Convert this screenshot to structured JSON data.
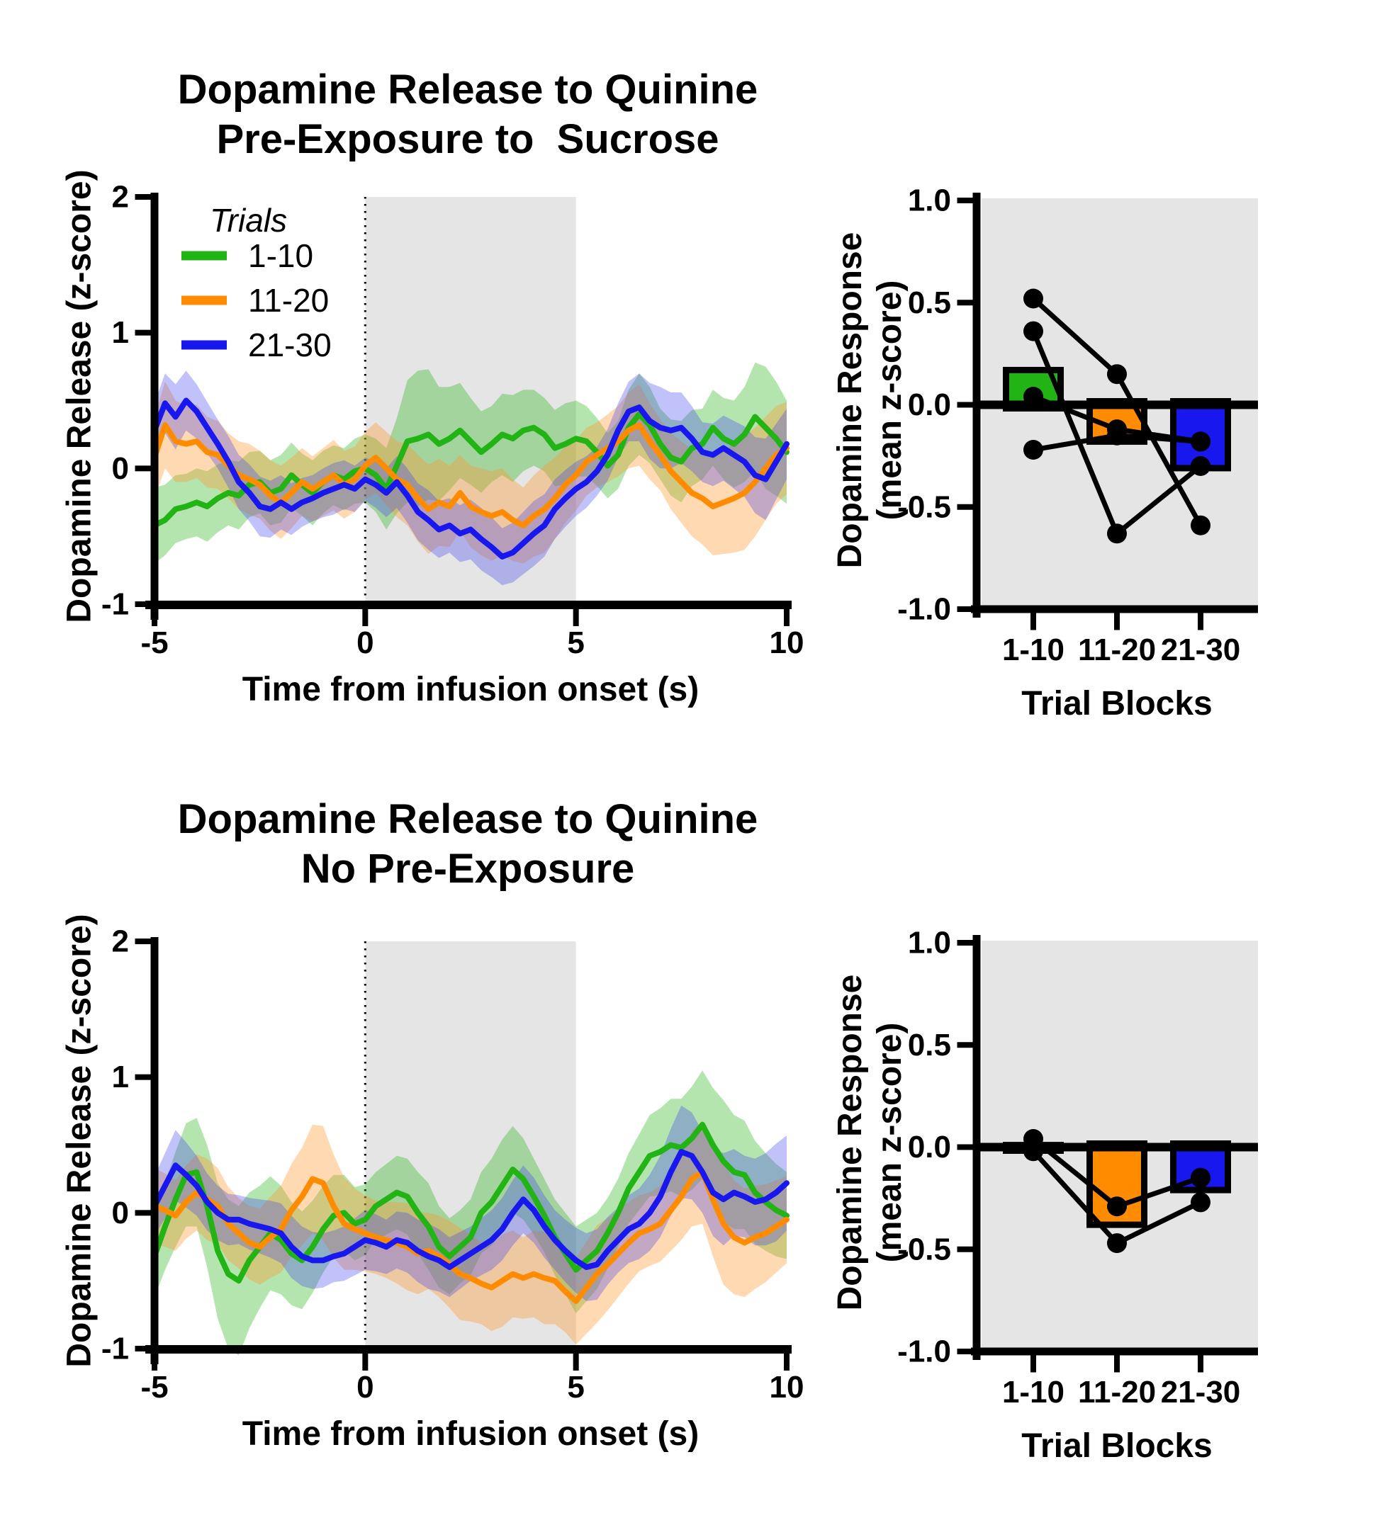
{
  "text": {
    "pre_title1": "Dopamine Release to Quinine",
    "pre_title2": "Pre-Exposure to  Sucrose",
    "no_title1": "Dopamine Release to Quinine",
    "no_title2": "No Pre-Exposure",
    "time_xlabel": "Time from infusion onset (s)",
    "release_ylabel": "Dopamine Release (z-score)",
    "response_ylabel1": "Dopamine Response",
    "response_ylabel2": "(mean z-score)",
    "trial_blocks": "Trial Blocks",
    "legend_title": "Trials"
  },
  "colors": {
    "green": "#22B314",
    "orange": "#FF8C00",
    "blue": "#1717EE",
    "green_band": "rgba(34,179,20,0.34)",
    "orange_band": "rgba(255,150,40,0.36)",
    "blue_band": "rgba(70,70,240,0.33)",
    "shade_gray": "#E5E5E5",
    "axis_black": "#000000"
  },
  "chart_data": [
    {
      "id": "pre_exposure_traces",
      "type": "line",
      "title": "Dopamine Release to Quinine Pre-Exposure to  Sucrose",
      "xlabel": "Time from infusion onset (s)",
      "ylabel": "Dopamine Release (z-score)",
      "xlim": [
        -5,
        10
      ],
      "ylim": [
        -1,
        2
      ],
      "xticks": [
        -5,
        0,
        5,
        10
      ],
      "yticks": [
        -1,
        0,
        1,
        2
      ],
      "shaded_region_x": [
        0,
        5
      ],
      "dotted_line_x": 0,
      "x_start": -5,
      "x_step": 0.25,
      "legend": {
        "title": "Trials",
        "position": "top-left"
      },
      "series": [
        {
          "name": "1-10",
          "color": "#22B314",
          "band_color": "rgba(34,179,20,0.34)",
          "mean": [
            -0.42,
            -0.38,
            -0.3,
            -0.28,
            -0.25,
            -0.28,
            -0.22,
            -0.18,
            -0.2,
            -0.12,
            -0.1,
            -0.18,
            -0.15,
            -0.05,
            -0.12,
            -0.18,
            -0.1,
            -0.05,
            -0.08,
            -0.02,
            0.0,
            -0.05,
            -0.15,
            0.02,
            0.2,
            0.22,
            0.25,
            0.18,
            0.22,
            0.28,
            0.2,
            0.12,
            0.18,
            0.25,
            0.22,
            0.28,
            0.3,
            0.25,
            0.15,
            0.18,
            0.22,
            0.2,
            0.12,
            0.02,
            0.1,
            0.3,
            0.4,
            0.32,
            0.18,
            0.08,
            0.05,
            0.15,
            0.18,
            0.3,
            0.22,
            0.18,
            0.25,
            0.38,
            0.3,
            0.22,
            0.12
          ],
          "sem": [
            0.28,
            0.26,
            0.25,
            0.24,
            0.25,
            0.26,
            0.25,
            0.24,
            0.25,
            0.24,
            0.23,
            0.24,
            0.25,
            0.24,
            0.23,
            0.24,
            0.23,
            0.22,
            0.23,
            0.24,
            0.25,
            0.27,
            0.3,
            0.35,
            0.45,
            0.5,
            0.48,
            0.42,
            0.38,
            0.35,
            0.32,
            0.3,
            0.28,
            0.3,
            0.32,
            0.3,
            0.28,
            0.27,
            0.28,
            0.3,
            0.28,
            0.26,
            0.25,
            0.24,
            0.25,
            0.28,
            0.3,
            0.28,
            0.26,
            0.28,
            0.3,
            0.28,
            0.26,
            0.28,
            0.3,
            0.32,
            0.35,
            0.4,
            0.45,
            0.42,
            0.38
          ]
        },
        {
          "name": "11-20",
          "color": "#FF8C00",
          "band_color": "rgba(255,150,40,0.36)",
          "mean": [
            0.08,
            0.32,
            0.2,
            0.18,
            0.2,
            0.12,
            0.1,
            0.02,
            -0.05,
            -0.08,
            -0.12,
            -0.2,
            -0.25,
            -0.18,
            -0.1,
            -0.15,
            -0.1,
            -0.05,
            -0.12,
            -0.08,
            0.02,
            0.08,
            0.0,
            -0.08,
            -0.12,
            -0.22,
            -0.3,
            -0.25,
            -0.28,
            -0.18,
            -0.28,
            -0.32,
            -0.35,
            -0.32,
            -0.38,
            -0.42,
            -0.35,
            -0.3,
            -0.22,
            -0.12,
            -0.05,
            0.05,
            0.1,
            0.15,
            0.2,
            0.28,
            0.32,
            0.2,
            0.1,
            -0.02,
            -0.1,
            -0.18,
            -0.22,
            -0.28,
            -0.25,
            -0.22,
            -0.18,
            -0.1,
            0.0,
            0.1,
            0.15
          ],
          "sem": [
            0.3,
            0.32,
            0.3,
            0.28,
            0.27,
            0.26,
            0.25,
            0.24,
            0.25,
            0.26,
            0.25,
            0.26,
            0.27,
            0.26,
            0.25,
            0.24,
            0.25,
            0.26,
            0.25,
            0.24,
            0.25,
            0.26,
            0.27,
            0.28,
            0.3,
            0.32,
            0.33,
            0.32,
            0.3,
            0.28,
            0.3,
            0.32,
            0.33,
            0.32,
            0.3,
            0.28,
            0.3,
            0.32,
            0.3,
            0.28,
            0.26,
            0.25,
            0.24,
            0.25,
            0.26,
            0.28,
            0.3,
            0.28,
            0.26,
            0.28,
            0.3,
            0.32,
            0.34,
            0.36,
            0.38,
            0.4,
            0.42,
            0.4,
            0.38,
            0.36,
            0.34
          ]
        },
        {
          "name": "21-30",
          "color": "#1717EE",
          "band_color": "rgba(70,70,240,0.33)",
          "mean": [
            0.28,
            0.48,
            0.38,
            0.5,
            0.42,
            0.3,
            0.18,
            0.05,
            -0.1,
            -0.18,
            -0.28,
            -0.3,
            -0.25,
            -0.3,
            -0.25,
            -0.22,
            -0.18,
            -0.15,
            -0.12,
            -0.15,
            -0.08,
            -0.12,
            -0.18,
            -0.1,
            -0.2,
            -0.32,
            -0.38,
            -0.45,
            -0.42,
            -0.48,
            -0.45,
            -0.52,
            -0.58,
            -0.65,
            -0.62,
            -0.55,
            -0.48,
            -0.42,
            -0.3,
            -0.22,
            -0.15,
            -0.1,
            -0.02,
            0.1,
            0.28,
            0.42,
            0.45,
            0.35,
            0.3,
            0.28,
            0.3,
            0.22,
            0.12,
            0.1,
            0.15,
            0.1,
            0.05,
            -0.05,
            -0.08,
            0.05,
            0.18
          ],
          "sem": [
            0.2,
            0.22,
            0.24,
            0.22,
            0.2,
            0.19,
            0.18,
            0.19,
            0.2,
            0.21,
            0.22,
            0.21,
            0.2,
            0.19,
            0.18,
            0.17,
            0.18,
            0.19,
            0.18,
            0.17,
            0.16,
            0.17,
            0.18,
            0.19,
            0.2,
            0.21,
            0.22,
            0.21,
            0.2,
            0.21,
            0.22,
            0.23,
            0.22,
            0.21,
            0.22,
            0.23,
            0.24,
            0.23,
            0.22,
            0.21,
            0.2,
            0.19,
            0.18,
            0.19,
            0.2,
            0.22,
            0.25,
            0.28,
            0.3,
            0.28,
            0.26,
            0.24,
            0.22,
            0.23,
            0.24,
            0.25,
            0.26,
            0.28,
            0.3,
            0.28,
            0.26
          ]
        }
      ]
    },
    {
      "id": "pre_exposure_bars",
      "type": "bar",
      "xlabel": "Trial Blocks",
      "ylabel": "Dopamine Response (mean z-score)",
      "ylabel_lines": [
        "Dopamine Response",
        "(mean z-score)"
      ],
      "categories": [
        "1-10",
        "11-20",
        "21-30"
      ],
      "values": [
        0.17,
        -0.18,
        -0.31
      ],
      "bar_colors": [
        "#22B314",
        "#FF8C00",
        "#1717EE"
      ],
      "ylim": [
        -1,
        1
      ],
      "yticks": [
        1.0,
        0.5,
        0.0,
        -0.5,
        -1.0
      ],
      "ytick_labels": [
        "1.0",
        "0.5",
        "0.0",
        "-0.5",
        "-1.0"
      ],
      "subjects": [
        [
          0.52,
          0.15,
          -0.59
        ],
        [
          0.36,
          -0.63,
          -0.3
        ],
        [
          0.04,
          -0.12,
          -0.18
        ],
        [
          -0.22,
          -0.15,
          -0.18
        ]
      ]
    },
    {
      "id": "no_pre_exposure_traces",
      "type": "line",
      "title": "Dopamine Release to Quinine No Pre-Exposure",
      "xlabel": "Time from infusion onset (s)",
      "ylabel": "Dopamine Release (z-score)",
      "xlim": [
        -5,
        10
      ],
      "ylim": [
        -1,
        2
      ],
      "xticks": [
        -5,
        0,
        5,
        10
      ],
      "yticks": [
        -1,
        0,
        1,
        2
      ],
      "shaded_region_x": [
        0,
        5
      ],
      "dotted_line_x": 0,
      "x_start": -5,
      "x_step": 0.25,
      "legend": null,
      "series": [
        {
          "name": "1-10",
          "color": "#22B314",
          "band_color": "rgba(34,179,20,0.34)",
          "mean": [
            -0.32,
            -0.1,
            0.1,
            0.28,
            0.3,
            0.05,
            -0.28,
            -0.45,
            -0.5,
            -0.35,
            -0.25,
            -0.15,
            -0.2,
            -0.3,
            -0.35,
            -0.25,
            -0.12,
            -0.02,
            0.0,
            -0.08,
            -0.05,
            0.05,
            0.1,
            0.15,
            0.12,
            0.0,
            -0.1,
            -0.25,
            -0.32,
            -0.25,
            -0.18,
            0.0,
            0.08,
            0.2,
            0.32,
            0.25,
            0.12,
            -0.02,
            -0.18,
            -0.3,
            -0.42,
            -0.35,
            -0.28,
            -0.15,
            0.0,
            0.18,
            0.3,
            0.42,
            0.45,
            0.5,
            0.48,
            0.55,
            0.65,
            0.5,
            0.38,
            0.3,
            0.28,
            0.15,
            0.08,
            0.02,
            -0.02
          ],
          "sem": [
            0.3,
            0.32,
            0.35,
            0.38,
            0.4,
            0.45,
            0.5,
            0.55,
            0.55,
            0.5,
            0.45,
            0.42,
            0.4,
            0.38,
            0.36,
            0.34,
            0.32,
            0.3,
            0.28,
            0.27,
            0.26,
            0.25,
            0.26,
            0.27,
            0.28,
            0.3,
            0.32,
            0.3,
            0.28,
            0.27,
            0.28,
            0.3,
            0.32,
            0.34,
            0.32,
            0.3,
            0.28,
            0.27,
            0.28,
            0.3,
            0.32,
            0.3,
            0.28,
            0.26,
            0.25,
            0.26,
            0.28,
            0.3,
            0.32,
            0.34,
            0.36,
            0.38,
            0.4,
            0.42,
            0.45,
            0.42,
            0.4,
            0.38,
            0.36,
            0.34,
            0.32
          ]
        },
        {
          "name": "11-20",
          "color": "#FF8C00",
          "band_color": "rgba(255,150,40,0.36)",
          "mean": [
            0.05,
            0.02,
            -0.02,
            0.08,
            0.15,
            0.1,
            0.05,
            -0.08,
            -0.15,
            -0.22,
            -0.25,
            -0.18,
            -0.12,
            0.02,
            0.12,
            0.25,
            0.22,
            0.05,
            -0.08,
            -0.12,
            -0.15,
            -0.18,
            -0.2,
            -0.22,
            -0.25,
            -0.3,
            -0.28,
            -0.32,
            -0.38,
            -0.45,
            -0.48,
            -0.52,
            -0.55,
            -0.5,
            -0.45,
            -0.48,
            -0.45,
            -0.48,
            -0.5,
            -0.58,
            -0.65,
            -0.55,
            -0.45,
            -0.38,
            -0.3,
            -0.22,
            -0.15,
            -0.12,
            -0.08,
            0.02,
            0.12,
            0.25,
            0.3,
            0.1,
            -0.08,
            -0.18,
            -0.22,
            -0.18,
            -0.15,
            -0.1,
            -0.05
          ],
          "sem": [
            0.28,
            0.27,
            0.26,
            0.27,
            0.28,
            0.3,
            0.28,
            0.27,
            0.26,
            0.27,
            0.28,
            0.3,
            0.32,
            0.34,
            0.36,
            0.4,
            0.42,
            0.38,
            0.34,
            0.3,
            0.28,
            0.27,
            0.28,
            0.3,
            0.32,
            0.3,
            0.28,
            0.3,
            0.32,
            0.34,
            0.32,
            0.3,
            0.32,
            0.34,
            0.32,
            0.3,
            0.32,
            0.34,
            0.32,
            0.3,
            0.32,
            0.34,
            0.36,
            0.34,
            0.32,
            0.3,
            0.28,
            0.27,
            0.28,
            0.3,
            0.32,
            0.35,
            0.38,
            0.42,
            0.45,
            0.42,
            0.4,
            0.38,
            0.36,
            0.34,
            0.32
          ]
        },
        {
          "name": "21-30",
          "color": "#1717EE",
          "band_color": "rgba(70,70,240,0.33)",
          "mean": [
            0.05,
            0.2,
            0.35,
            0.28,
            0.2,
            0.08,
            0.0,
            -0.05,
            -0.05,
            -0.08,
            -0.1,
            -0.12,
            -0.15,
            -0.25,
            -0.32,
            -0.35,
            -0.35,
            -0.32,
            -0.3,
            -0.25,
            -0.2,
            -0.22,
            -0.25,
            -0.2,
            -0.22,
            -0.28,
            -0.32,
            -0.35,
            -0.4,
            -0.35,
            -0.3,
            -0.25,
            -0.2,
            -0.12,
            0.0,
            0.1,
            0.02,
            -0.1,
            -0.2,
            -0.28,
            -0.35,
            -0.4,
            -0.38,
            -0.28,
            -0.2,
            -0.12,
            -0.08,
            0.0,
            0.12,
            0.3,
            0.45,
            0.42,
            0.3,
            0.15,
            0.1,
            0.15,
            0.12,
            0.08,
            0.1,
            0.15,
            0.22
          ],
          "sem": [
            0.22,
            0.24,
            0.26,
            0.24,
            0.22,
            0.21,
            0.2,
            0.19,
            0.18,
            0.19,
            0.2,
            0.21,
            0.22,
            0.23,
            0.22,
            0.21,
            0.2,
            0.19,
            0.2,
            0.21,
            0.22,
            0.21,
            0.2,
            0.21,
            0.22,
            0.23,
            0.24,
            0.23,
            0.22,
            0.21,
            0.2,
            0.21,
            0.22,
            0.23,
            0.24,
            0.25,
            0.24,
            0.23,
            0.22,
            0.23,
            0.24,
            0.25,
            0.26,
            0.25,
            0.24,
            0.25,
            0.26,
            0.28,
            0.3,
            0.32,
            0.34,
            0.32,
            0.3,
            0.32,
            0.34,
            0.32,
            0.3,
            0.32,
            0.34,
            0.36,
            0.35
          ]
        }
      ]
    },
    {
      "id": "no_pre_exposure_bars",
      "type": "bar",
      "xlabel": "Trial Blocks",
      "ylabel": "Dopamine Response (mean z-score)",
      "ylabel_lines": [
        "Dopamine Response",
        "(mean z-score)"
      ],
      "categories": [
        "1-10",
        "11-20",
        "21-30"
      ],
      "values": [
        0.01,
        -0.38,
        -0.21
      ],
      "bar_colors": [
        "#22B314",
        "#FF8C00",
        "#1717EE"
      ],
      "ylim": [
        -1,
        1
      ],
      "yticks": [
        1.0,
        0.5,
        0.0,
        -0.5,
        -1.0
      ],
      "ytick_labels": [
        "1.0",
        "0.5",
        "0.0",
        "-0.5",
        "-1.0"
      ],
      "subjects": [
        [
          0.04,
          -0.29,
          -0.15
        ],
        [
          -0.02,
          -0.47,
          -0.27
        ]
      ]
    }
  ]
}
